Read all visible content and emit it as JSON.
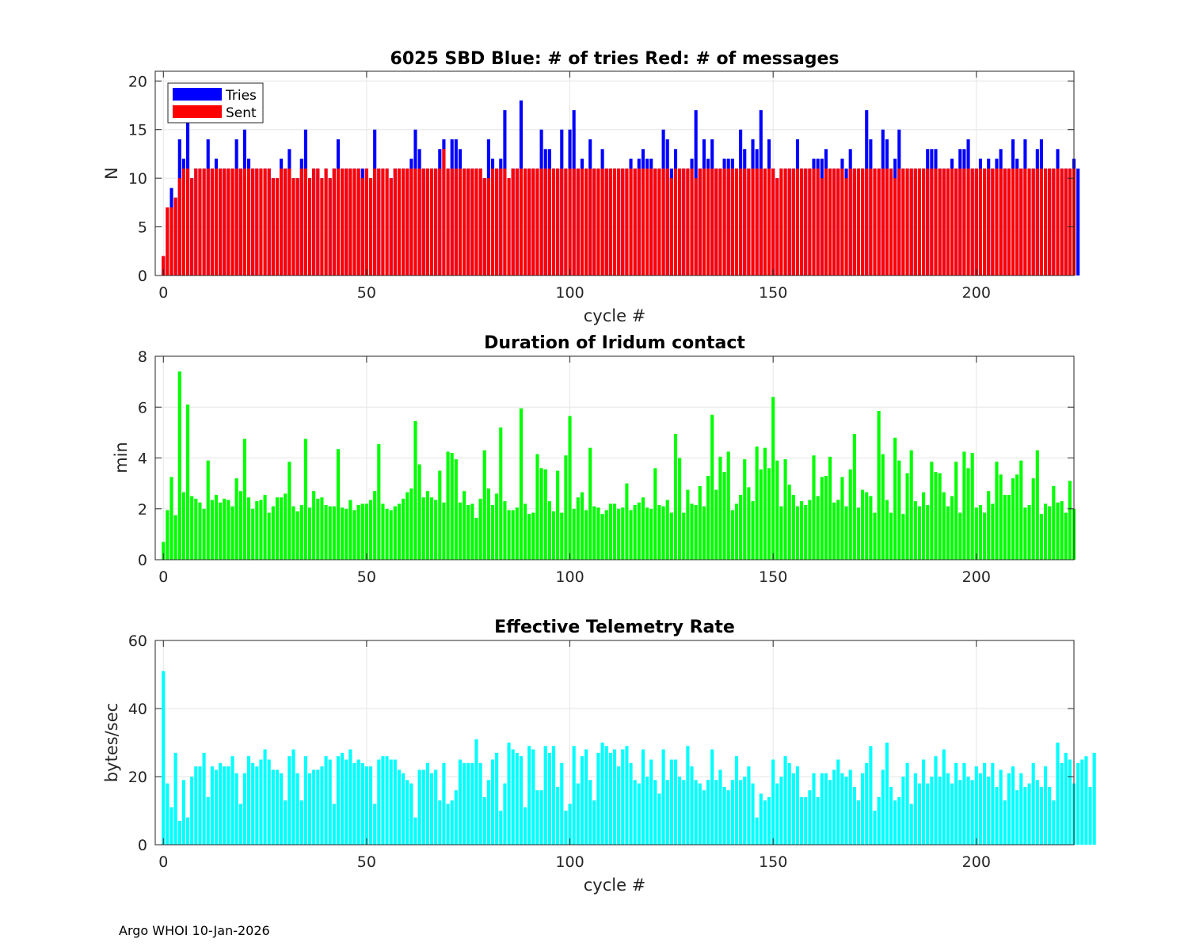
{
  "footer": "Argo WHOI 10-Jan-2026",
  "chart_data": [
    {
      "type": "bar",
      "title": "6025 SBD  Blue: # of tries   Red: # of messages",
      "xlabel": "cycle #",
      "ylabel": "N",
      "xlim": [
        -2,
        224
      ],
      "ylim": [
        0,
        21
      ],
      "xticks": [
        0,
        50,
        100,
        150,
        200
      ],
      "yticks": [
        0,
        5,
        10,
        15,
        20
      ],
      "grid": true,
      "legend": {
        "placement": "top-left",
        "entries": [
          {
            "name": "Tries",
            "color": "#0000ff"
          },
          {
            "name": "Sent",
            "color": "#ff0000"
          }
        ]
      },
      "x_start": 0,
      "series": [
        {
          "name": "Tries",
          "color": "#0000ff",
          "values": [
            2,
            7,
            9,
            8,
            14,
            12,
            16,
            10,
            11,
            11,
            11,
            14,
            11,
            12,
            11,
            11,
            11,
            11,
            14,
            11,
            15,
            12,
            11,
            11,
            11,
            11,
            11,
            10,
            10,
            12,
            11,
            13,
            10,
            10,
            12,
            15,
            10,
            11,
            11,
            10,
            11,
            10,
            11,
            14,
            11,
            11,
            11,
            11,
            11,
            11,
            11,
            10,
            15,
            11,
            11,
            11,
            10,
            11,
            11,
            11,
            11,
            12,
            15,
            13,
            11,
            11,
            11,
            11,
            13,
            14,
            11,
            14,
            14,
            13,
            11,
            11,
            11,
            11,
            11,
            10,
            14,
            12,
            11,
            12,
            17,
            10,
            11,
            11,
            18,
            11,
            11,
            11,
            11,
            15,
            13,
            13,
            11,
            11,
            15,
            11,
            15,
            17,
            11,
            12,
            11,
            14,
            11,
            11,
            13,
            11,
            11,
            11,
            11,
            11,
            11,
            12,
            11,
            12,
            13,
            12,
            12,
            11,
            11,
            15,
            14,
            11,
            13,
            11,
            11,
            11,
            12,
            17,
            11,
            14,
            12,
            14,
            11,
            11,
            12,
            12,
            12,
            11,
            15,
            13,
            11,
            14,
            13,
            17,
            11,
            14,
            11,
            10,
            11,
            11,
            11,
            11,
            14,
            11,
            11,
            11,
            12,
            12,
            12,
            13,
            11,
            11,
            11,
            12,
            11,
            13,
            11,
            11,
            11,
            17,
            14,
            11,
            11,
            15,
            14,
            11,
            12,
            15,
            11,
            11,
            11,
            11,
            11,
            11,
            13,
            13,
            13,
            11,
            11,
            11,
            12,
            11,
            13,
            13,
            14,
            11,
            11,
            12,
            11,
            12,
            11,
            12,
            13,
            11,
            11,
            14,
            12,
            11,
            14,
            11,
            11,
            13,
            14,
            11,
            11,
            11,
            13,
            11,
            11,
            11,
            12,
            11
          ]
        },
        {
          "name": "Sent",
          "color": "#ff0000",
          "values": [
            2,
            7,
            7,
            8,
            10,
            11,
            11,
            10,
            11,
            11,
            11,
            11,
            11,
            11,
            11,
            11,
            11,
            11,
            11,
            11,
            11,
            11,
            11,
            11,
            11,
            11,
            11,
            10,
            10,
            11,
            11,
            11,
            10,
            10,
            11,
            11,
            10,
            11,
            11,
            10,
            11,
            10,
            11,
            11,
            11,
            11,
            11,
            11,
            11,
            10,
            11,
            10,
            11,
            11,
            11,
            11,
            10,
            11,
            11,
            11,
            11,
            11,
            11,
            11,
            11,
            11,
            11,
            11,
            11,
            13,
            11,
            11,
            11,
            11,
            11,
            11,
            11,
            11,
            11,
            10,
            10,
            11,
            11,
            11,
            11,
            10,
            11,
            11,
            11,
            11,
            11,
            11,
            11,
            11,
            11,
            11,
            11,
            11,
            11,
            11,
            11,
            11,
            11,
            11,
            11,
            11,
            11,
            11,
            11,
            11,
            11,
            11,
            11,
            11,
            11,
            11,
            11,
            11,
            11,
            11,
            11,
            11,
            11,
            11,
            11,
            10,
            11,
            11,
            11,
            11,
            11,
            10,
            11,
            11,
            11,
            11,
            11,
            11,
            11,
            11,
            11,
            11,
            11,
            11,
            11,
            11,
            11,
            11,
            11,
            11,
            11,
            10,
            11,
            11,
            11,
            11,
            11,
            11,
            11,
            11,
            11,
            11,
            10,
            11,
            11,
            11,
            11,
            11,
            10,
            11,
            11,
            11,
            11,
            11,
            11,
            11,
            11,
            11,
            11,
            11,
            10,
            11,
            11,
            11,
            11,
            11,
            11,
            11,
            11,
            11,
            11,
            11,
            11,
            11,
            11,
            11,
            11,
            11,
            11,
            11,
            11,
            11,
            11,
            11,
            11,
            11,
            11,
            11,
            11,
            11,
            11,
            11,
            11,
            11,
            11,
            11,
            11,
            11,
            11,
            11,
            11,
            11,
            11,
            11,
            11
          ]
        }
      ]
    },
    {
      "type": "bar",
      "title": "Duration of Iridum contact",
      "xlabel": "",
      "ylabel": "min",
      "xlim": [
        -2,
        224
      ],
      "ylim": [
        0,
        8
      ],
      "xticks": [
        0,
        50,
        100,
        150,
        200
      ],
      "yticks": [
        0,
        2,
        4,
        6,
        8
      ],
      "grid": true,
      "x_start": 0,
      "series": [
        {
          "name": "Duration",
          "color": "#00ff00",
          "values": [
            0.7,
            1.95,
            3.25,
            1.75,
            7.4,
            2.65,
            6.1,
            2.5,
            2.4,
            2.25,
            2.0,
            3.9,
            2.35,
            2.55,
            2.25,
            2.4,
            2.35,
            2.1,
            3.2,
            2.7,
            4.75,
            2.45,
            2.0,
            2.3,
            2.35,
            2.55,
            1.85,
            2.1,
            2.45,
            2.45,
            2.6,
            3.85,
            2.1,
            1.9,
            2.15,
            4.75,
            2.05,
            2.7,
            2.4,
            2.45,
            2.15,
            2.1,
            2.1,
            4.35,
            2.05,
            2.0,
            2.35,
            1.95,
            2.15,
            2.2,
            2.2,
            2.35,
            2.7,
            4.55,
            2.2,
            2.0,
            1.95,
            2.1,
            2.2,
            2.4,
            2.65,
            2.8,
            5.45,
            3.75,
            2.45,
            2.7,
            2.45,
            2.35,
            3.5,
            2.25,
            4.25,
            4.2,
            3.95,
            2.25,
            2.7,
            2.15,
            2.2,
            1.65,
            2.4,
            4.3,
            2.8,
            2.15,
            2.6,
            5.2,
            2.3,
            1.95,
            1.95,
            2.05,
            5.95,
            2.2,
            1.8,
            1.85,
            4.15,
            3.6,
            3.55,
            2.3,
            1.9,
            3.5,
            1.85,
            4.1,
            5.65,
            2.0,
            2.45,
            2.65,
            1.95,
            4.4,
            2.1,
            2.05,
            1.8,
            1.95,
            2.2,
            2.2,
            2.0,
            2.05,
            3.0,
            1.95,
            2.15,
            2.25,
            2.45,
            2.05,
            2.0,
            3.6,
            2.15,
            2.1,
            2.35,
            1.85,
            4.95,
            4.0,
            1.85,
            2.75,
            2.2,
            2.15,
            2.9,
            2.1,
            3.3,
            5.7,
            2.75,
            4.05,
            3.45,
            4.25,
            1.95,
            2.2,
            2.55,
            3.95,
            2.85,
            2.3,
            4.45,
            3.55,
            4.4,
            3.6,
            6.4,
            3.9,
            2.1,
            3.95,
            2.95,
            2.55,
            2.1,
            2.3,
            2.15,
            2.35,
            4.1,
            2.5,
            3.25,
            3.3,
            4.05,
            2.25,
            2.35,
            3.25,
            2.1,
            3.55,
            4.95,
            2.05,
            2.75,
            2.65,
            2.5,
            1.85,
            5.85,
            4.15,
            2.35,
            1.85,
            4.8,
            3.9,
            1.8,
            3.4,
            4.3,
            2.3,
            2.1,
            2.65,
            2.15,
            3.85,
            3.45,
            3.4,
            2.65,
            2.1,
            2.5,
            3.85,
            1.85,
            4.25,
            3.6,
            4.2,
            2.05,
            2.15,
            1.85,
            2.7,
            2.2,
            3.85,
            3.35,
            2.55,
            2.55,
            3.2,
            3.35,
            3.9,
            2.05,
            2.15,
            3.2,
            4.3,
            1.8,
            2.2,
            2.1,
            2.9,
            2.25,
            2.3,
            1.85,
            3.1,
            2.0
          ]
        }
      ]
    },
    {
      "type": "bar",
      "title": "Effective Telemetry Rate",
      "xlabel": "cycle #",
      "ylabel": "bytes/sec",
      "xlim": [
        -2,
        224
      ],
      "ylim": [
        0,
        60
      ],
      "xticks": [
        0,
        50,
        100,
        150,
        200
      ],
      "yticks": [
        0,
        20,
        40,
        60
      ],
      "grid": true,
      "x_start": 0,
      "series": [
        {
          "name": "Rate",
          "color": "#00ffff",
          "values": [
            51,
            18,
            11,
            27,
            7,
            19,
            8,
            20,
            23,
            23,
            27,
            14,
            23,
            22,
            24,
            23,
            23,
            26,
            21,
            12,
            21,
            26,
            24,
            23,
            25,
            28,
            25,
            22,
            22,
            21,
            13,
            26,
            28,
            21,
            13,
            26,
            21,
            22,
            22,
            23,
            26,
            25,
            12,
            26,
            27,
            25,
            28,
            24,
            25,
            24,
            23,
            23,
            12,
            25,
            26,
            26,
            25,
            25,
            22,
            21,
            19,
            18,
            8,
            22,
            22,
            24,
            21,
            22,
            13,
            24,
            12,
            13,
            16,
            25,
            24,
            24,
            24,
            31,
            24,
            14,
            19,
            25,
            27,
            10,
            18,
            30,
            28,
            27,
            26,
            11,
            29,
            28,
            16,
            16,
            29,
            27,
            29,
            17,
            24,
            10,
            12,
            29,
            18,
            26,
            28,
            19,
            13,
            27,
            30,
            29,
            27,
            28,
            23,
            28,
            29,
            24,
            19,
            18,
            28,
            20,
            25,
            19,
            15,
            28,
            19,
            25,
            25,
            20,
            19,
            29,
            23,
            19,
            18,
            16,
            19,
            28,
            19,
            22,
            17,
            16,
            19,
            26,
            19,
            20,
            23,
            18,
            8,
            15,
            13,
            14,
            25,
            18,
            20,
            26,
            24,
            21,
            23,
            14,
            14,
            16,
            21,
            14,
            21,
            21,
            19,
            22,
            25,
            21,
            20,
            22,
            17,
            13,
            21,
            24,
            29,
            10,
            14,
            22,
            30,
            17,
            13,
            14,
            20,
            24,
            12,
            21,
            18,
            25,
            18,
            20,
            26,
            20,
            28,
            21,
            18,
            24,
            19,
            24,
            20,
            19,
            23,
            21,
            24,
            20,
            24,
            17,
            22,
            13,
            21,
            23,
            16,
            21,
            17,
            18,
            24,
            19,
            17,
            23,
            17,
            13,
            30,
            24,
            27,
            25,
            18,
            24,
            25,
            26,
            17,
            27
          ]
        }
      ]
    }
  ]
}
